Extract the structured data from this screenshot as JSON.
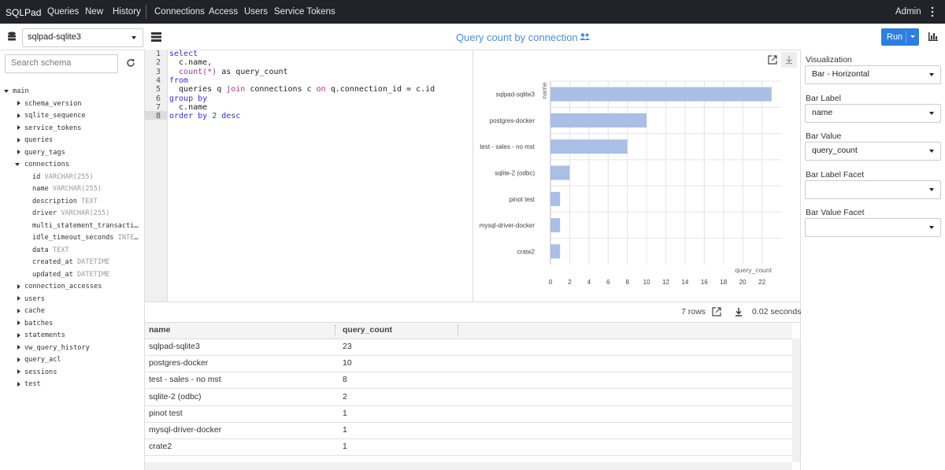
{
  "nav": {
    "brand": "SQLPad",
    "links": [
      "Queries",
      "New",
      "History"
    ],
    "admin_links": [
      "Connections",
      "Access",
      "Users",
      "Service Tokens"
    ],
    "user": "Admin"
  },
  "toolbar": {
    "connection": "sqlpad-sqlite3",
    "query_name": "Query count by connection",
    "run": "Run"
  },
  "schema": {
    "search_placeholder": "Search schema",
    "tree": {
      "name": "main",
      "children": [
        {
          "name": "schema_version"
        },
        {
          "name": "sqlite_sequence"
        },
        {
          "name": "service_tokens"
        },
        {
          "name": "queries"
        },
        {
          "name": "query_tags"
        },
        {
          "name": "connections",
          "columns": [
            {
              "name": "id",
              "type": "VARCHAR(255)"
            },
            {
              "name": "name",
              "type": "VARCHAR(255)"
            },
            {
              "name": "description",
              "type": "TEXT"
            },
            {
              "name": "driver",
              "type": "VARCHAR(255)"
            },
            {
              "name": "multi_statement_transaction_enabled"
            },
            {
              "name": "idle_timeout_seconds",
              "type": "INTEGER"
            },
            {
              "name": "data",
              "type": "TEXT"
            },
            {
              "name": "created_at",
              "type": "DATETIME"
            },
            {
              "name": "updated_at",
              "type": "DATETIME"
            }
          ]
        },
        {
          "name": "connection_accesses"
        },
        {
          "name": "users"
        },
        {
          "name": "cache"
        },
        {
          "name": "batches"
        },
        {
          "name": "statements"
        },
        {
          "name": "vw_query_history"
        },
        {
          "name": "query_acl"
        },
        {
          "name": "sessions"
        },
        {
          "name": "test"
        }
      ]
    }
  },
  "editor": {
    "line_numbers": [
      1,
      2,
      3,
      4,
      5,
      6,
      7,
      8
    ],
    "lines": [
      [
        {
          "text": "select",
          "kind": "kw"
        }
      ],
      [
        {
          "text": "  c.name,",
          "kind": "plain"
        }
      ],
      [
        {
          "text": "  count(*)",
          "kind": "fn"
        },
        {
          "text": " as query_count",
          "kind": "plain"
        }
      ],
      [
        {
          "text": "from",
          "kind": "kw"
        }
      ],
      [
        {
          "text": "  queries q ",
          "kind": "plain"
        },
        {
          "text": "join",
          "kind": "fn"
        },
        {
          "text": " connections c ",
          "kind": "plain"
        },
        {
          "text": "on",
          "kind": "fn"
        },
        {
          "text": " q.connection_id = c.id",
          "kind": "plain"
        }
      ],
      [
        {
          "text": "group by",
          "kind": "kw"
        }
      ],
      [
        {
          "text": "  c.name",
          "kind": "plain"
        }
      ],
      [
        {
          "text": "order by ",
          "kind": "kw"
        },
        {
          "text": "2",
          "kind": "num"
        },
        {
          "text": " desc",
          "kind": "kw"
        }
      ]
    ]
  },
  "chart": {
    "type": "bar",
    "orientation": "horizontal",
    "x_label": "query_count",
    "y_label": "name",
    "categories": [
      "sqlpad-sqlite3",
      "postgres-docker",
      "test - sales - no mst",
      "sqlite-2 (odbc)",
      "pinot test",
      "mysql-driver-docker",
      "crate2"
    ],
    "values": [
      23,
      10,
      8,
      2,
      1,
      1,
      1
    ],
    "color": "#a9bfe6",
    "xlim": [
      0,
      24
    ],
    "xticks": [
      0,
      2,
      4,
      6,
      8,
      10,
      12,
      14,
      16,
      18,
      20,
      22
    ],
    "grid": true
  },
  "results": {
    "row_count": "7 rows",
    "duration": "0.02 seconds",
    "columns": [
      "name",
      "query_count"
    ],
    "rows": [
      [
        "sqlpad-sqlite3",
        23
      ],
      [
        "postgres-docker",
        10
      ],
      [
        "test - sales - no mst",
        8
      ],
      [
        "sqlite-2 (odbc)",
        2
      ],
      [
        "pinot test",
        1
      ],
      [
        "mysql-driver-docker",
        1
      ],
      [
        "crate2",
        1
      ]
    ]
  },
  "visualization": {
    "fields": [
      {
        "label": "Visualization",
        "value": "Bar - Horizontal"
      },
      {
        "label": "Bar Label",
        "value": "name"
      },
      {
        "label": "Bar Value",
        "value": "query_count"
      },
      {
        "label": "Bar Label Facet"
      },
      {
        "label": "Bar Value Facet"
      }
    ]
  }
}
